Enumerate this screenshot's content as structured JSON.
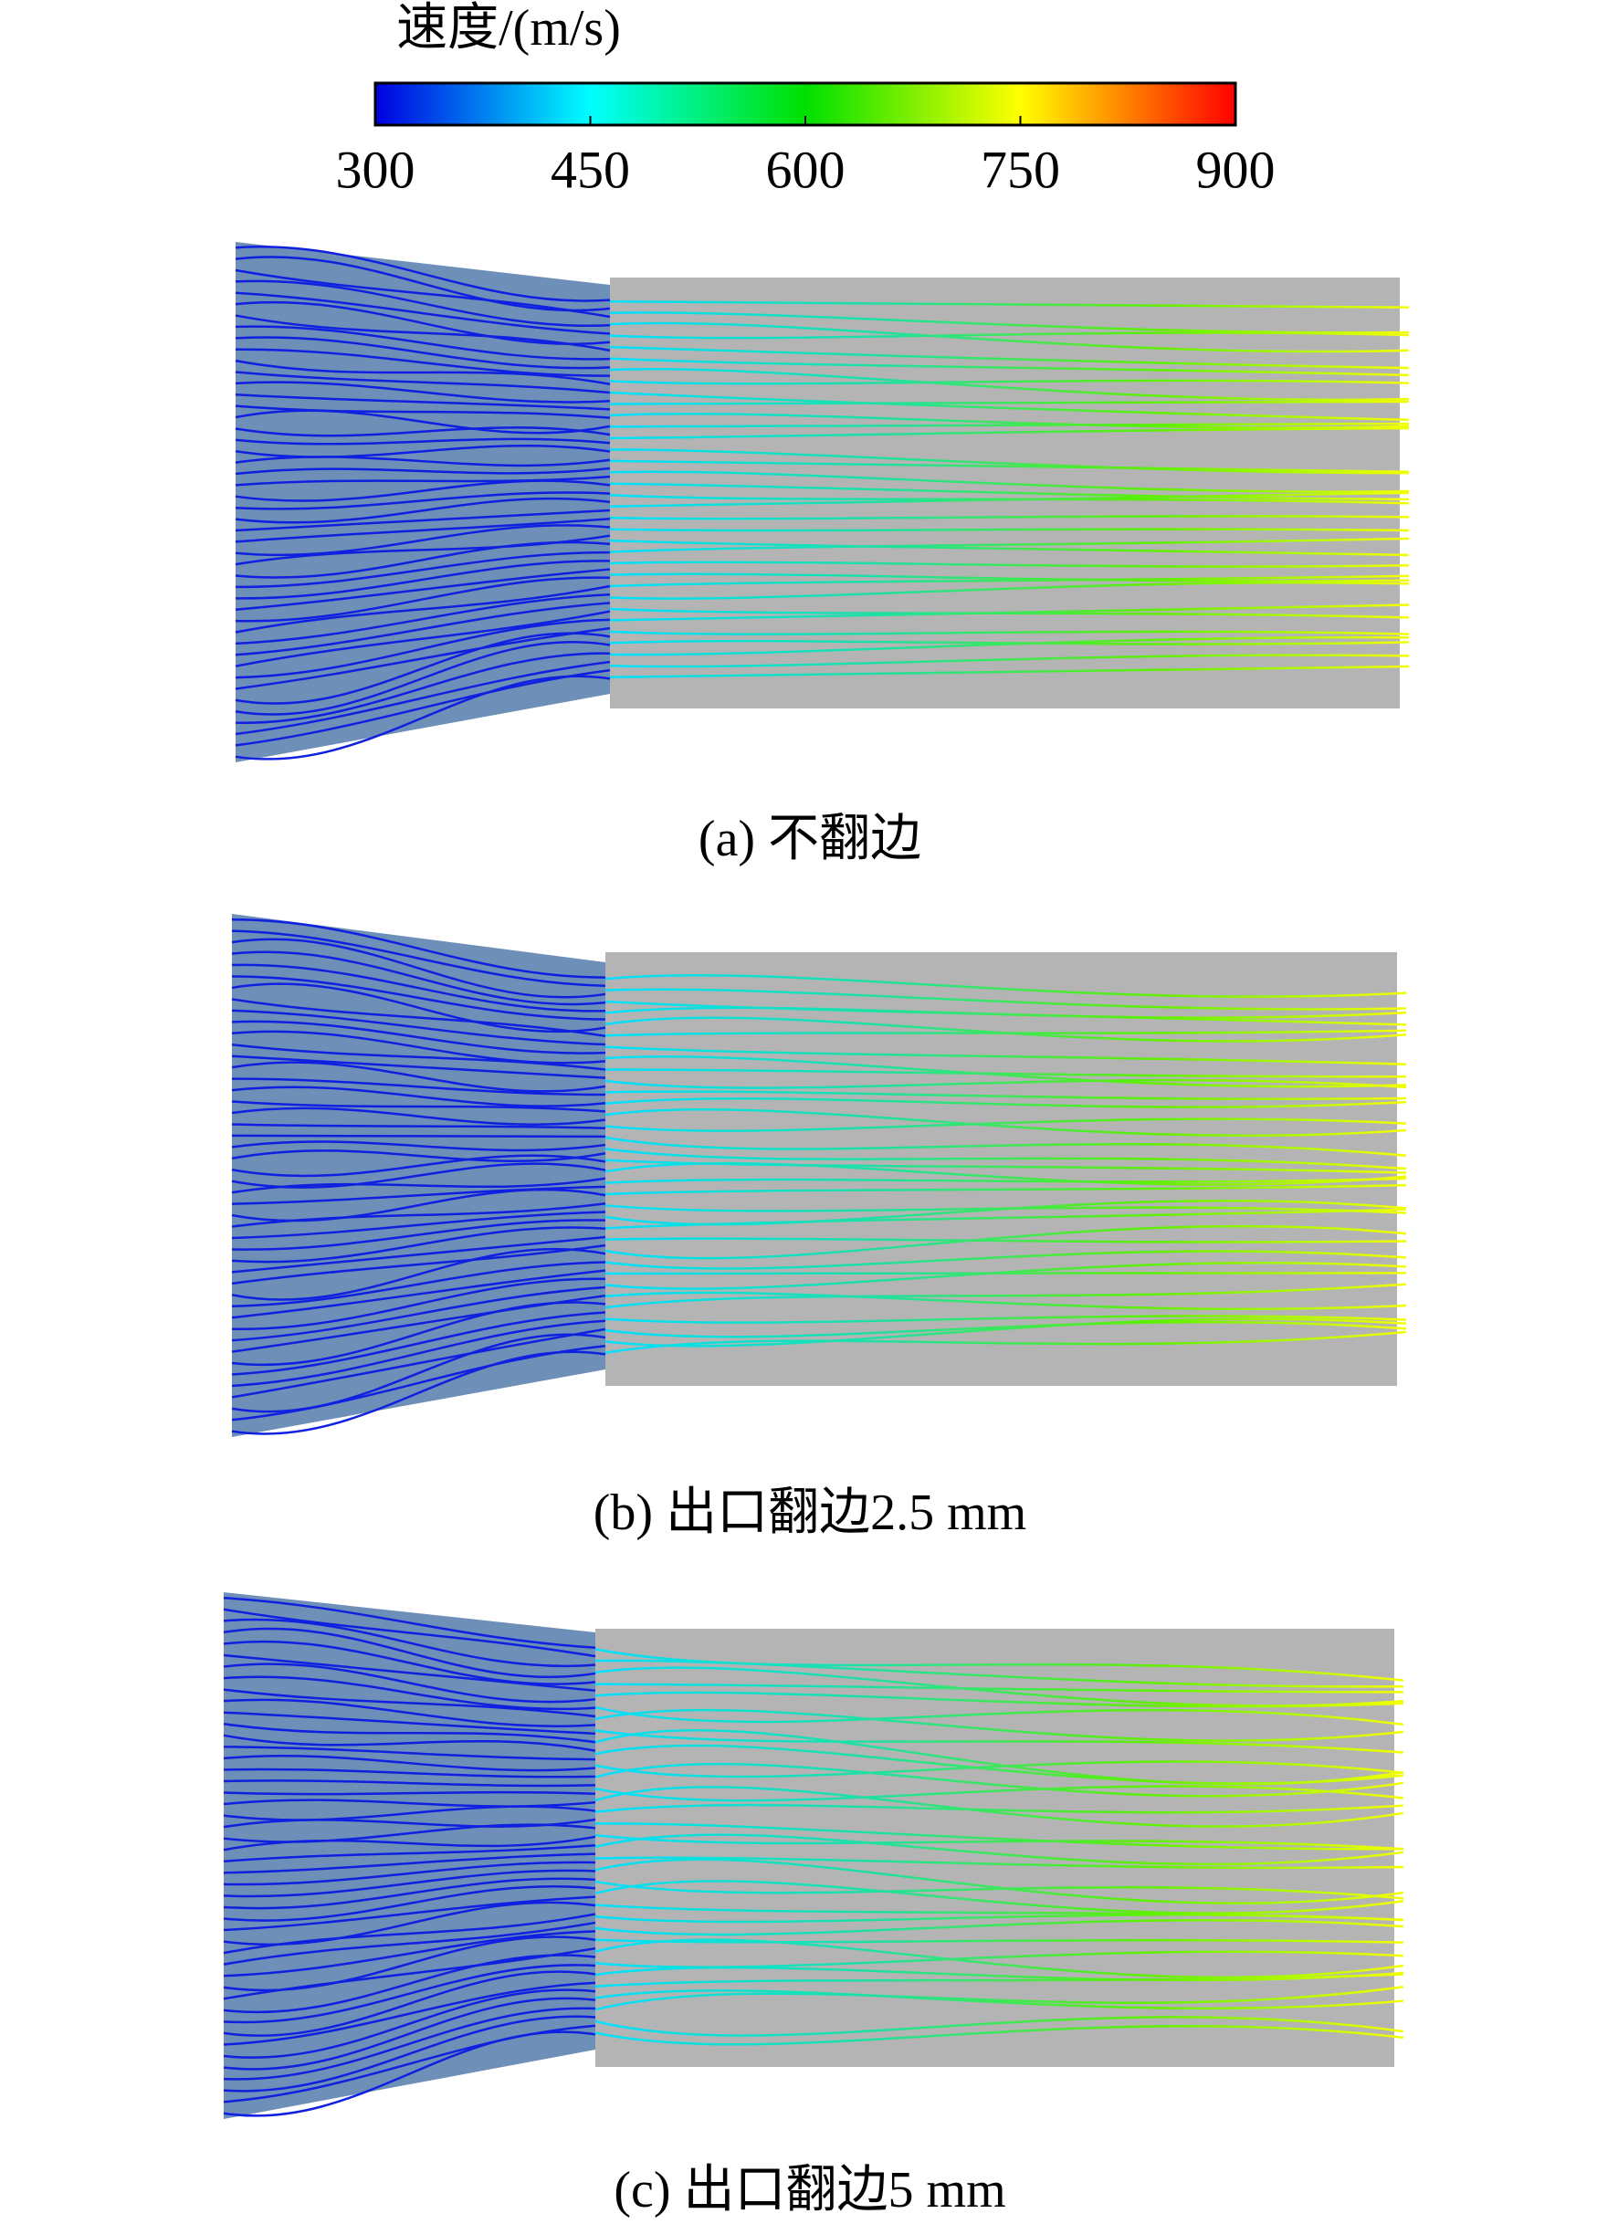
{
  "colorbar": {
    "title": "速度/(m/s)",
    "range": [
      300,
      900
    ],
    "ticks": [
      300,
      450,
      600,
      750,
      900
    ]
  },
  "panels": [
    {
      "caption": "(a) 不翻边"
    },
    {
      "caption": "(b) 出口翻边2.5 mm"
    },
    {
      "caption": "(c) 出口翻边5 mm"
    }
  ]
}
